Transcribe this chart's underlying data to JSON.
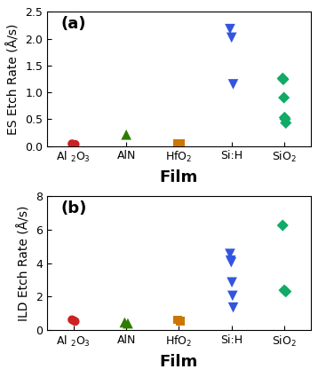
{
  "panel_a": {
    "ylabel": "ES Etch Rate (Å/s)",
    "ylim": [
      0,
      2.5
    ],
    "yticks": [
      0,
      0.5,
      1.0,
      1.5,
      2.0,
      2.5
    ],
    "data": {
      "Al2O3": {
        "x": 1,
        "y": [
          0.04,
          0.03
        ],
        "color": "#cc2222",
        "marker": "o",
        "size": 50
      },
      "AlN": {
        "x": 2,
        "y": [
          0.21
        ],
        "color": "#2e7d00",
        "marker": "^",
        "size": 70
      },
      "HfO2": {
        "x": 3,
        "y": [
          0.05,
          0.04
        ],
        "color": "#cc7700",
        "marker": "s",
        "size": 50
      },
      "SiH": {
        "x": 4,
        "y": [
          2.18,
          2.02,
          1.15
        ],
        "color": "#3355dd",
        "marker": "v",
        "size": 70
      },
      "SiO2": {
        "x": 5,
        "y": [
          1.26,
          1.24,
          0.9,
          0.53,
          0.5,
          0.43
        ],
        "color": "#11aa66",
        "marker": "D",
        "size": 45
      }
    },
    "label": "(a)"
  },
  "panel_b": {
    "ylabel": "ILD Etch Rate (Å/s)",
    "ylim": [
      0,
      8
    ],
    "yticks": [
      0,
      2,
      4,
      6,
      8
    ],
    "data": {
      "Al2O3": {
        "x": 1,
        "y": [
          0.62,
          0.57,
          0.52
        ],
        "color": "#cc2222",
        "marker": "o",
        "size": 50
      },
      "AlN": {
        "x": 2,
        "y": [
          0.46,
          0.4
        ],
        "color": "#2e7d00",
        "marker": "^",
        "size": 70
      },
      "HfO2": {
        "x": 3,
        "y": [
          0.62,
          0.55
        ],
        "color": "#cc7700",
        "marker": "s",
        "size": 50
      },
      "SiH": {
        "x": 4,
        "y": [
          4.55,
          4.15,
          4.05,
          2.85,
          2.05,
          1.35
        ],
        "color": "#3355dd",
        "marker": "v",
        "size": 70
      },
      "SiO2": {
        "x": 5,
        "y": [
          6.25,
          2.38,
          2.3
        ],
        "color": "#11aa66",
        "marker": "D",
        "size": 45
      }
    },
    "label": "(b)"
  },
  "x_positions": [
    1,
    2,
    3,
    4,
    5
  ],
  "xlabel": "Film",
  "xlabel_fontsize": 13,
  "ylabel_fontsize": 10,
  "tick_fontsize": 9,
  "label_fontsize": 13,
  "background_color": "#ffffff"
}
